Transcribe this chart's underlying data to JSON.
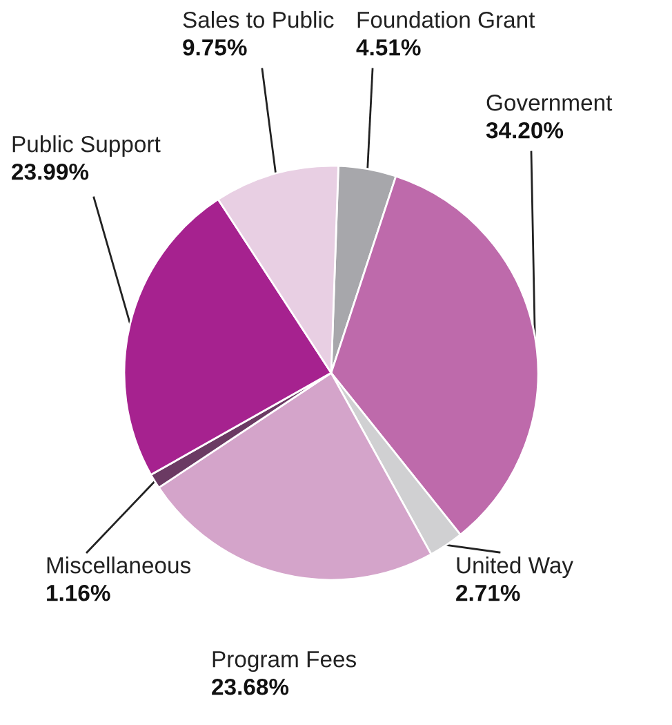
{
  "chart_data": {
    "type": "pie",
    "value_labels": [
      "4.51%",
      "34.20%",
      "2.71%",
      "23.68%",
      "1.16%",
      "23.99%",
      "9.75%"
    ],
    "categories": [
      "Foundation Grant",
      "Government",
      "United Way",
      "Program Fees",
      "Miscellaneous",
      "Public Support",
      "Sales to Public"
    ],
    "values": [
      4.51,
      34.2,
      2.71,
      23.68,
      1.16,
      23.99,
      9.75
    ],
    "colors": [
      "#a7a7ab",
      "#be6aab",
      "#d0d0d2",
      "#d4a4ca",
      "#6b3a63",
      "#a6228f",
      "#e8cfe3"
    ]
  }
}
